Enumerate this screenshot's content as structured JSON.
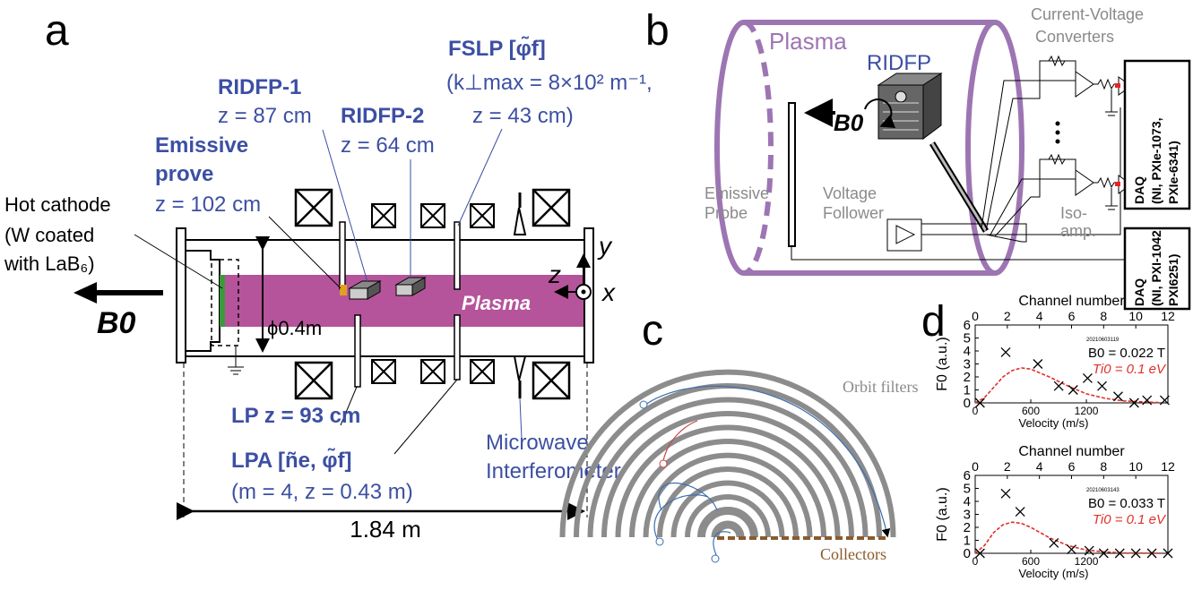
{
  "panels": [
    "a",
    "b",
    "c",
    "d"
  ],
  "a": {
    "rid1_name": "RIDFP-1",
    "rid1_z": "z = 87 cm",
    "rid2_name": "RIDFP-2",
    "rid2_z": "z = 64 cm",
    "fslp_name": "FSLP [φ̃f]",
    "fslp_k": "(k⊥max = 8×10² m⁻¹,",
    "fslp_z": "z = 43 cm)",
    "emissive_1": "Emissive",
    "emissive_2": "prove",
    "emissive_z": "z = 102 cm",
    "cathode": [
      "Hot cathode",
      "(W coated",
      "with LaB₆)"
    ],
    "b0": "B0",
    "plasma": "Plasma",
    "diameter": "ϕ0.4m",
    "lp": "LP z = 93 cm",
    "lpa": "LPA [ñe, φ̃f]",
    "lpa_params": "(m = 4, z = 0.43 m)",
    "microwave": [
      "Microwave",
      "Interferometer"
    ],
    "length": "1.84 m",
    "axes": [
      "y",
      "z",
      "x"
    ]
  },
  "b": {
    "plasma": "Plasma",
    "ridfp": "RIDFP",
    "b0": "B0",
    "converters": [
      "Current-Voltage",
      "Converters"
    ],
    "probe": [
      "Emissive",
      "Probe"
    ],
    "follower": [
      "Voltage",
      "Follower"
    ],
    "iso": [
      "Iso-",
      "amp."
    ],
    "daq1": [
      "DAQ",
      "(NI, PXIe-1073,",
      "PXIe-6341)"
    ],
    "daq2": [
      "DAQ",
      "(NI, PXI-1042,",
      "PXI6251)"
    ]
  },
  "c": {
    "orbit": "Orbit filters",
    "collectors": "Collectors"
  },
  "d": {
    "charts": [
      {
        "type": "scatter",
        "top_label": "Channel number",
        "xlabel": "Velocity (m/s)",
        "ylabel": "F0 (a.u.)",
        "xlim": [
          0,
          12
        ],
        "xticks": [
          0,
          2,
          4,
          6,
          8,
          10,
          12
        ],
        "x2lim": [
          0,
          2080
        ],
        "x2ticks": [
          0,
          600,
          1200
        ],
        "ylim": [
          0,
          6
        ],
        "yticks": [
          0,
          1,
          2,
          3,
          4,
          5,
          6
        ],
        "run_id": "20210603119",
        "annotations": [
          "B0 = 0.022 T",
          "Ti0 = 0.1 eV"
        ],
        "points": {
          "color": "#000000",
          "x": [
            0.3,
            1.9,
            3.9,
            5.2,
            6.1,
            7.0,
            7.9,
            8.9,
            9.9,
            10.7,
            11.8
          ],
          "y": [
            0,
            3.9,
            3.0,
            1.3,
            1.0,
            1.9,
            1.3,
            0.5,
            0,
            0.2,
            0.2
          ]
        },
        "fit": {
          "color": "#e0302a",
          "x": [
            0,
            100,
            200,
            300,
            400,
            500,
            600,
            800,
            1000,
            1200,
            1400,
            1600,
            2000
          ],
          "y": [
            0,
            0.4,
            1.2,
            2.0,
            2.5,
            2.7,
            2.6,
            2.0,
            1.3,
            0.7,
            0.35,
            0.15,
            0.02
          ]
        }
      },
      {
        "type": "scatter",
        "top_label": "Channel number",
        "xlabel": "Velocity (m/s)",
        "ylabel": "F0 (a.u.)",
        "xlim": [
          0,
          12
        ],
        "xticks": [
          0,
          2,
          4,
          6,
          8,
          10,
          12
        ],
        "x2lim": [
          0,
          2080
        ],
        "x2ticks": [
          0,
          600,
          1200
        ],
        "ylim": [
          0,
          6
        ],
        "yticks": [
          0,
          1,
          2,
          3,
          4,
          5,
          6
        ],
        "run_id": "20210603143",
        "annotations": [
          "B0 = 0.033 T",
          "Ti0 = 0.1 eV"
        ],
        "points": {
          "color": "#000000",
          "x": [
            0.3,
            1.9,
            2.8,
            4.9,
            6.0,
            7.1,
            8.0,
            9.0,
            10.0,
            11.0,
            12.0
          ],
          "y": [
            0,
            4.6,
            3.2,
            0.8,
            0.3,
            0.2,
            0,
            0,
            0,
            0,
            0
          ]
        },
        "fit": {
          "color": "#e0302a",
          "x": [
            0,
            100,
            200,
            300,
            400,
            500,
            600,
            800,
            1000,
            1200,
            1400,
            1600,
            2000
          ],
          "y": [
            0,
            0.6,
            1.6,
            2.2,
            2.4,
            2.3,
            2.0,
            1.2,
            0.6,
            0.25,
            0.1,
            0.03,
            0
          ]
        }
      }
    ]
  }
}
